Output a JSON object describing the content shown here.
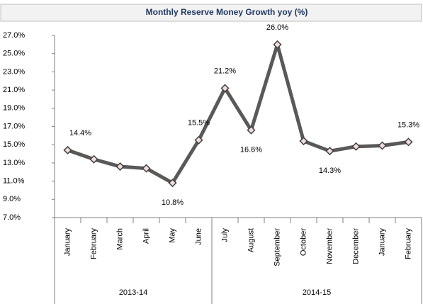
{
  "chart_data": {
    "type": "line",
    "title": "Monthly Reserve Money Growth yoy (%)",
    "categories": [
      "January",
      "February",
      "March",
      "April",
      "May",
      "June",
      "July",
      "August",
      "September",
      "October",
      "November",
      "December",
      "January",
      "February"
    ],
    "series": [
      {
        "color": "#595959",
        "values": [
          14.4,
          13.4,
          12.6,
          12.4,
          10.8,
          15.5,
          21.2,
          16.6,
          26.0,
          15.4,
          14.3,
          14.8,
          14.9,
          15.3
        ],
        "value_labels": [
          "14.4%",
          null,
          null,
          null,
          "10.8%",
          "15.5%",
          "21.2%",
          "16.6%",
          "26.0%",
          null,
          "14.3%",
          null,
          null,
          "15.3%"
        ]
      }
    ],
    "groups": [
      {
        "label": "2013-14",
        "span": 6
      },
      {
        "label": "2014-15",
        "span": 8
      }
    ],
    "ylim": [
      7,
      27
    ],
    "yticks": [
      {
        "value": 7,
        "label": "7.0%"
      },
      {
        "value": 9,
        "label": "9.0%"
      },
      {
        "value": 11,
        "label": "11.0%"
      },
      {
        "value": 13,
        "label": "13.0%"
      },
      {
        "value": 15,
        "label": "15.0%"
      },
      {
        "value": 17,
        "label": "17.0%"
      },
      {
        "value": 19,
        "label": "19.0%"
      },
      {
        "value": 21,
        "label": "21.0%"
      },
      {
        "value": 23,
        "label": "23.0%"
      },
      {
        "value": 25,
        "label": "25.0%"
      },
      {
        "value": 27,
        "label": "27.0%"
      }
    ],
    "grid": false
  }
}
